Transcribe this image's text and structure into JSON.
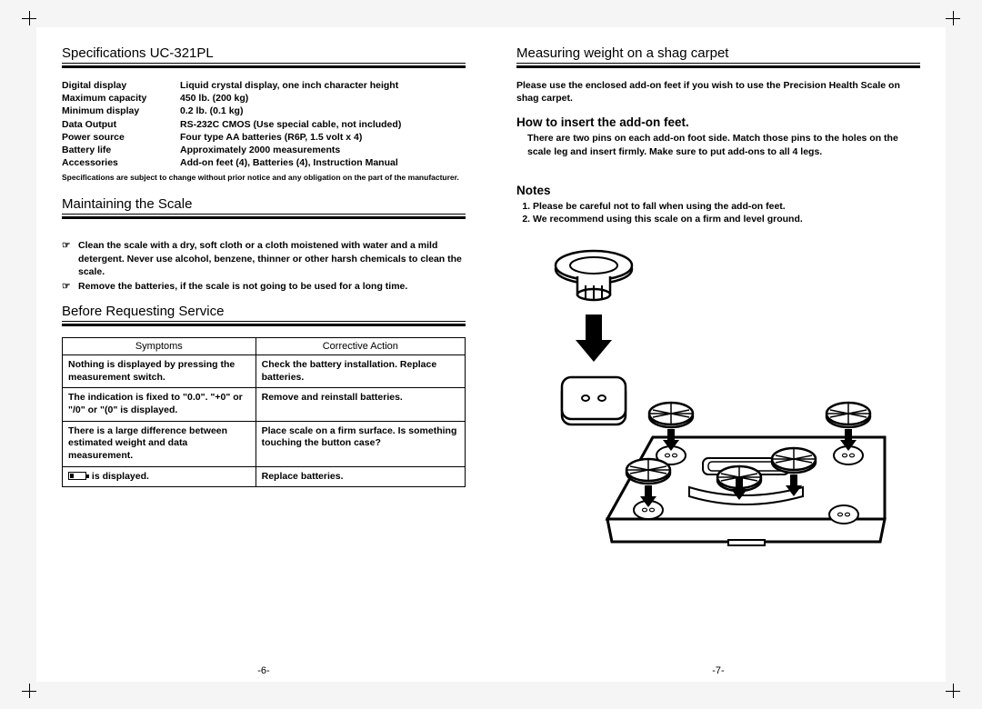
{
  "left": {
    "spec_title": "Specifications UC-321PL",
    "specs": [
      {
        "label": "Digital display",
        "value": "Liquid crystal display, one inch character height"
      },
      {
        "label": "Maximum capacity",
        "value": "450 lb. (200 kg)"
      },
      {
        "label": "Minimum display",
        "value": "0.2 lb. (0.1 kg)"
      },
      {
        "label": "Data Output",
        "value": "RS-232C CMOS (Use special cable, not included)"
      },
      {
        "label": "Power source",
        "value": "Four type AA batteries (R6P, 1.5 volt x 4)"
      },
      {
        "label": "Battery life",
        "value": "Approximately 2000 measurements"
      },
      {
        "label": "Accessories",
        "value": "Add-on feet (4), Batteries (4), Instruction Manual"
      }
    ],
    "spec_footnote": "Specifications are subject to change without prior notice and any obligation on the part of the manufacturer.",
    "maintain_title": "Maintaining the Scale",
    "maintain_items": [
      "Clean the scale with a dry, soft cloth or a cloth moistened with water and a mild detergent. Never use alcohol, benzene, thinner or other harsh chemicals to clean the scale.",
      "Remove the batteries, if the scale is not going to be used for a long time."
    ],
    "service_title": "Before Requesting Service",
    "table": {
      "headers": [
        "Symptoms",
        "Corrective Action"
      ],
      "rows": [
        [
          "Nothing is displayed by pressing the measurement switch.",
          "Check the battery installation. Replace batteries."
        ],
        [
          "The indication is fixed to \"0.0\". \"+0\" or \"/0\" or \"(0\" is displayed.",
          "Remove and reinstall batteries."
        ],
        [
          "There is a large difference between estimated weight and data measurement.",
          "Place scale on a firm surface. Is something touching the button case?"
        ],
        [
          "__BATTERY__ is displayed.",
          "Replace batteries."
        ]
      ]
    },
    "page_num": "-6-"
  },
  "right": {
    "title": "Measuring weight on a shag carpet",
    "intro": "Please use the enclosed add-on feet if you wish to use the Precision Health Scale on shag carpet.",
    "howto_heading": "How to insert the add-on feet.",
    "howto_body": "There are two pins on each add-on foot side. Match those pins to the holes on the scale leg and insert firmly. Make sure to put add-ons to all 4 legs.",
    "notes_heading": "Notes",
    "notes": [
      "Please be careful not to fall when using the add-on feet.",
      "We recommend using this scale on a firm and level ground."
    ],
    "page_num": "-7-"
  }
}
